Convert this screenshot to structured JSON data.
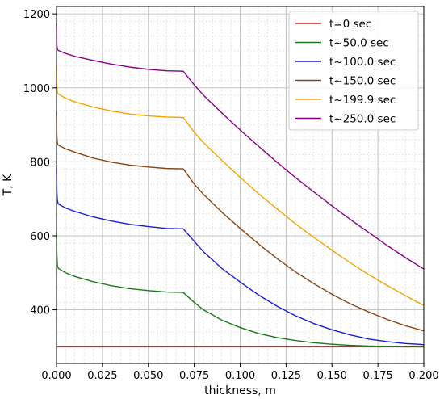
{
  "chart_data": {
    "type": "line",
    "xlabel": "thickness, m",
    "ylabel": "T, K",
    "xlim": [
      0.0,
      0.2
    ],
    "ylim": [
      255,
      1220
    ],
    "xticks": [
      0.0,
      0.025,
      0.05,
      0.075,
      0.1,
      0.125,
      0.15,
      0.175,
      0.2
    ],
    "xtick_labels": [
      "0.000",
      "0.025",
      "0.050",
      "0.075",
      "0.100",
      "0.125",
      "0.150",
      "0.175",
      "0.200"
    ],
    "yticks": [
      400,
      600,
      800,
      1000,
      1200
    ],
    "ytick_labels": [
      "400",
      "600",
      "800",
      "1000",
      "1200"
    ],
    "grid": true,
    "minor_grid": true,
    "legend_position": "top-right",
    "series": [
      {
        "name": "t=0 sec",
        "color": "#d62728",
        "x": [
          0.0,
          0.2
        ],
        "y": [
          300,
          300
        ]
      },
      {
        "name": "t~50.0 sec",
        "color": "#1a7a1a",
        "x": [
          0.0,
          0.0002,
          0.0005,
          0.001,
          0.005,
          0.01,
          0.02,
          0.03,
          0.04,
          0.05,
          0.06,
          0.069,
          0.075,
          0.08,
          0.09,
          0.1,
          0.11,
          0.12,
          0.13,
          0.14,
          0.15,
          0.16,
          0.17,
          0.18,
          0.19,
          0.2
        ],
        "y": [
          610,
          550,
          520,
          512,
          500,
          490,
          476,
          465,
          457,
          452,
          448,
          447,
          420,
          400,
          372,
          352,
          336,
          325,
          317,
          311,
          307,
          304,
          302,
          301,
          300,
          300
        ]
      },
      {
        "name": "t~100.0 sec",
        "color": "#1c1cd6",
        "x": [
          0.0,
          0.0002,
          0.0005,
          0.001,
          0.005,
          0.01,
          0.02,
          0.03,
          0.04,
          0.05,
          0.06,
          0.069,
          0.075,
          0.08,
          0.09,
          0.1,
          0.11,
          0.12,
          0.13,
          0.14,
          0.15,
          0.16,
          0.17,
          0.18,
          0.19,
          0.2
        ],
        "y": [
          785,
          720,
          695,
          686,
          675,
          666,
          651,
          640,
          631,
          625,
          620,
          619,
          585,
          557,
          512,
          475,
          440,
          410,
          384,
          363,
          346,
          332,
          321,
          314,
          309,
          306
        ]
      },
      {
        "name": "t~150.0 sec",
        "color": "#8b4513",
        "x": [
          0.0,
          0.0002,
          0.0005,
          0.001,
          0.005,
          0.01,
          0.02,
          0.03,
          0.04,
          0.05,
          0.06,
          0.069,
          0.075,
          0.08,
          0.09,
          0.1,
          0.11,
          0.12,
          0.13,
          0.14,
          0.15,
          0.16,
          0.17,
          0.18,
          0.19,
          0.2
        ],
        "y": [
          937,
          870,
          850,
          845,
          835,
          826,
          810,
          799,
          791,
          786,
          782,
          781,
          740,
          712,
          664,
          620,
          578,
          539,
          503,
          471,
          442,
          416,
          394,
          374,
          357,
          343
        ]
      },
      {
        "name": "t~199.9 sec",
        "color": "#f5a300",
        "x": [
          0.0,
          0.0002,
          0.0005,
          0.001,
          0.005,
          0.01,
          0.02,
          0.03,
          0.04,
          0.05,
          0.06,
          0.069,
          0.075,
          0.08,
          0.09,
          0.1,
          0.11,
          0.12,
          0.13,
          0.14,
          0.15,
          0.16,
          0.17,
          0.18,
          0.19,
          0.2
        ],
        "y": [
          1063,
          1000,
          987,
          983,
          972,
          962,
          948,
          937,
          929,
          924,
          921,
          920,
          880,
          852,
          804,
          758,
          714,
          673,
          633,
          596,
          561,
          527,
          495,
          466,
          438,
          412
        ]
      },
      {
        "name": "t~250.0 sec",
        "color": "#8b008b",
        "x": [
          0.0,
          0.0002,
          0.0005,
          0.001,
          0.005,
          0.01,
          0.02,
          0.03,
          0.04,
          0.05,
          0.06,
          0.069,
          0.075,
          0.08,
          0.09,
          0.1,
          0.11,
          0.12,
          0.13,
          0.14,
          0.15,
          0.16,
          0.17,
          0.18,
          0.19,
          0.2
        ],
        "y": [
          1175,
          1115,
          1104,
          1101,
          1093,
          1085,
          1074,
          1064,
          1056,
          1050,
          1046,
          1045,
          1008,
          980,
          932,
          886,
          842,
          799,
          758,
          719,
          681,
          644,
          609,
          574,
          541,
          510
        ]
      }
    ]
  }
}
